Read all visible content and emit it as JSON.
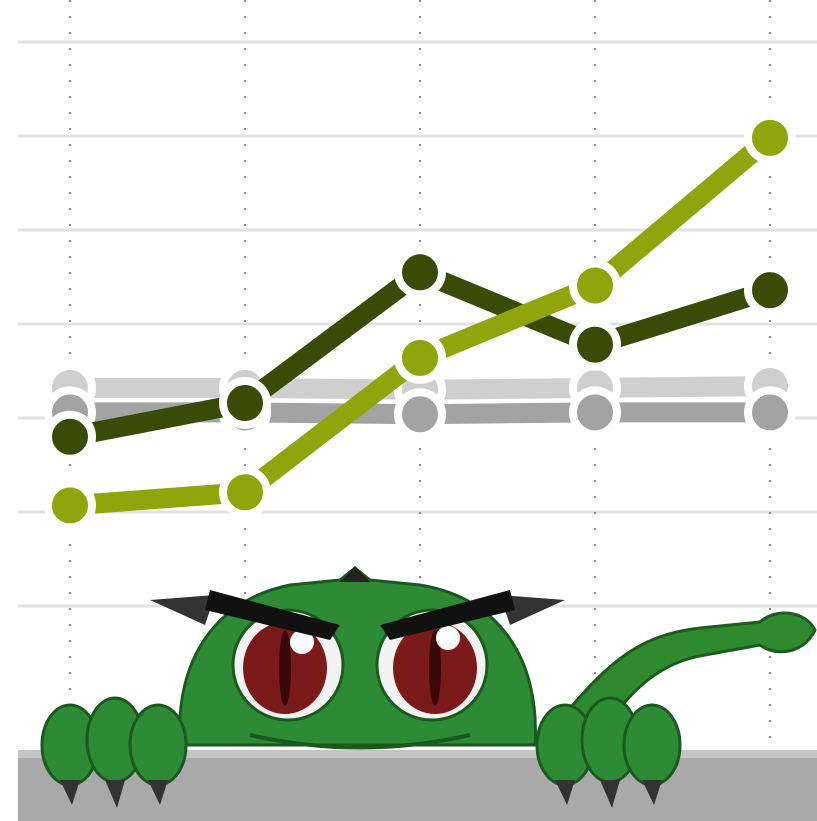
{
  "chart_data": {
    "type": "line",
    "categories": [
      null,
      null,
      null,
      null,
      null
    ],
    "series": [
      {
        "color": "#cfcfcf",
        "values": [
          3.32,
          3.32,
          3.3,
          3.32,
          3.34
        ]
      },
      {
        "color": "#a3a3a3",
        "values": [
          3.06,
          3.06,
          3.04,
          3.06,
          3.06
        ]
      },
      {
        "color": "#3c4a08",
        "values": [
          2.8,
          3.16,
          4.55,
          3.78,
          4.36
        ]
      },
      {
        "color": "#8ea50c",
        "values": [
          2.07,
          2.21,
          3.64,
          4.41,
          5.98
        ]
      }
    ],
    "ylim": [
      0,
      7
    ],
    "yticks": [
      1,
      2,
      3,
      4,
      5,
      6,
      7
    ],
    "grid": true
  }
}
